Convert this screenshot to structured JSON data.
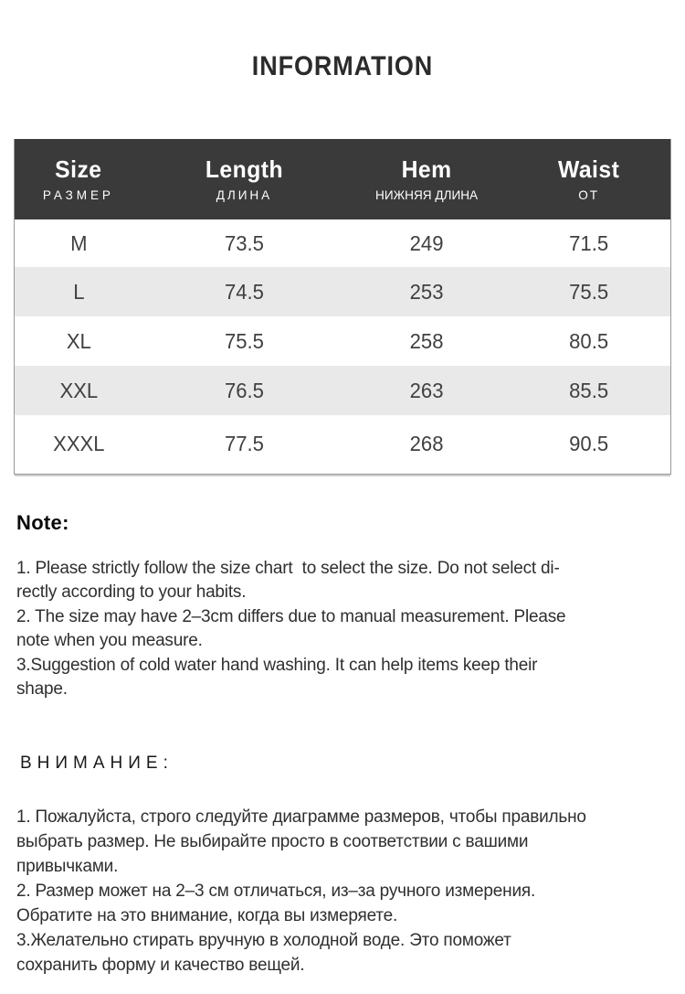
{
  "header": {
    "title": "INFORMATION"
  },
  "table": {
    "columns": [
      {
        "key": "size",
        "en": "Size",
        "ru": "РАЗМЕР"
      },
      {
        "key": "length",
        "en": "Length",
        "ru": "ДЛИНА"
      },
      {
        "key": "hem",
        "en": "Hem",
        "ru": "НИЖНЯЯ ДЛИНА"
      },
      {
        "key": "waist",
        "en": "Waist",
        "ru": "ОТ"
      }
    ],
    "rows": [
      {
        "size": "M",
        "length": "73.5",
        "hem": "249",
        "waist": "71.5"
      },
      {
        "size": "L",
        "length": "74.5",
        "hem": "253",
        "waist": "75.5"
      },
      {
        "size": "XL",
        "length": "75.5",
        "hem": "258",
        "waist": "80.5"
      },
      {
        "size": "XXL",
        "length": "76.5",
        "hem": "263",
        "waist": "85.5"
      },
      {
        "size": "XXXL",
        "length": "77.5",
        "hem": "268",
        "waist": "90.5"
      }
    ],
    "colors": {
      "header_bg": "#3a3a3a",
      "header_text": "#ffffff",
      "row_bg": "#ffffff",
      "row_alt_bg": "#e9e9e9",
      "border": "#9a9a9a",
      "cell_text": "#404040"
    }
  },
  "notes_en": {
    "heading": "Note:",
    "lines": [
      "1. Please strictly follow the size chart  to select the size. Do not select di-",
      "rectly according to your habits.",
      "2. The size may have 2–3cm differs due to manual measurement. Please",
      "note when you measure.",
      "3.Suggestion of cold water hand washing. It can help items keep their",
      "shape."
    ]
  },
  "notes_ru": {
    "heading": "ВНИМАНИЕ:",
    "lines": [
      "1. Пожалуйста, строго следуйте диаграмме размеров, чтобы правильно",
      "выбрать размер. Не выбирайте просто в соответствии с вашими",
      "привычками.",
      "2. Размер может на 2–3 см отличаться, из–за ручного измерения.",
      "Обратите на это внимание, когда вы измеряете.",
      "3.Желательно стирать вручную в холодной воде. Это поможет",
      "сохранить форму и качество вещей."
    ]
  }
}
